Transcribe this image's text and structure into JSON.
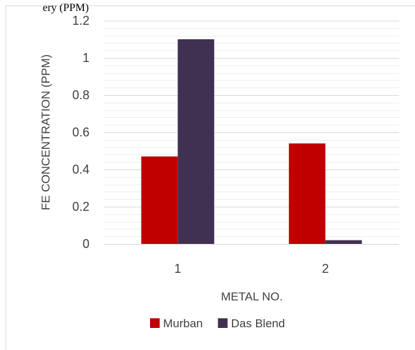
{
  "top_text_fragment": "ery (PPM)",
  "chart_data": {
    "type": "bar",
    "categories": [
      "1",
      "2"
    ],
    "series": [
      {
        "name": "Murban",
        "values": [
          0.47,
          0.54
        ],
        "color": "#c00000"
      },
      {
        "name": "Das Blend",
        "values": [
          1.1,
          0.02
        ],
        "color": "#403152"
      }
    ],
    "xlabel": "METAL NO.",
    "ylabel": "FE CONCENTRATION (PPM)",
    "ylim": [
      0,
      1.2
    ],
    "yticks": [
      "0",
      "0.2",
      "0.4",
      "0.6",
      "0.8",
      "1",
      "1.2"
    ],
    "grid": true,
    "legend_position": "bottom"
  }
}
